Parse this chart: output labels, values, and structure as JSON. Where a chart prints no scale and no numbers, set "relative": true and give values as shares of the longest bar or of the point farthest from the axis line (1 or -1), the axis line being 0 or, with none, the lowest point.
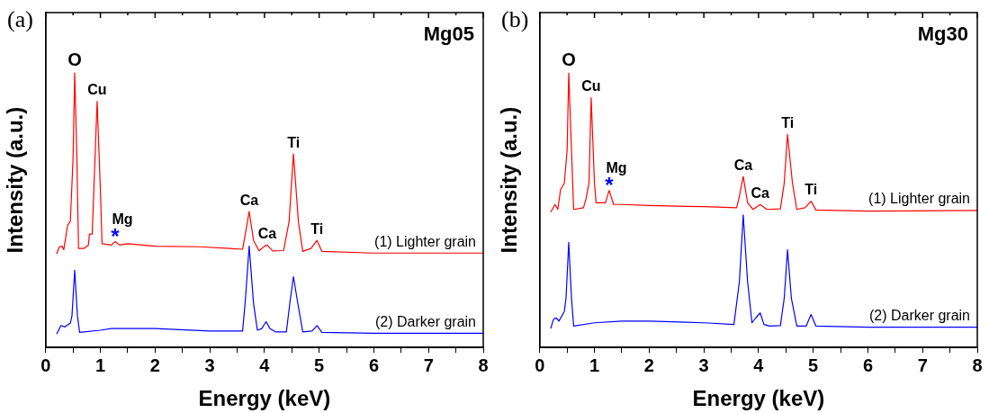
{
  "chart_data": [
    {
      "type": "line",
      "title": "Mg05",
      "xlabel": "Energy (keV)",
      "ylabel": "Intensity (a.u.)",
      "relative": true,
      "legend": false,
      "grid": false,
      "xlim": [
        0,
        8
      ],
      "xticks": [
        0,
        {
          "value": 0.5,
          "label": null
        },
        1,
        {
          "value": 1.5,
          "label": null
        },
        2,
        {
          "value": 2.5,
          "label": null
        },
        3,
        {
          "value": 3.5,
          "label": null
        },
        4,
        {
          "value": 4.5,
          "label": null
        },
        5,
        {
          "value": 5.5,
          "label": null
        },
        6,
        {
          "value": 6.5,
          "label": null
        },
        7,
        {
          "value": 7.5,
          "label": null
        },
        8
      ],
      "series": [
        {
          "name": "(1) Lighter grain",
          "color": "#ff0000",
          "x": [
            0.2,
            0.25,
            0.3,
            0.33,
            0.4,
            0.45,
            0.5,
            0.53,
            0.57,
            0.6,
            0.7,
            0.78,
            0.8,
            0.85,
            0.88,
            0.94,
            1.0,
            1.03,
            1.2,
            1.27,
            1.35,
            1.5,
            2.0,
            2.8,
            3.6,
            3.65,
            3.72,
            3.8,
            3.9,
            4.0,
            4.05,
            4.15,
            4.35,
            4.45,
            4.53,
            4.62,
            4.7,
            4.85,
            4.96,
            5.05,
            6,
            8
          ],
          "values": [
            0.341,
            0.367,
            0.369,
            0.356,
            0.445,
            0.459,
            0.688,
            1,
            0.688,
            0.361,
            0.361,
            0.373,
            0.413,
            0.413,
            0.573,
            0.897,
            0.573,
            0.378,
            0.373,
            0.386,
            0.373,
            0.378,
            0.369,
            0.367,
            0.358,
            0.413,
            0.495,
            0.39,
            0.352,
            0.369,
            0.373,
            0.352,
            0.353,
            0.459,
            0.705,
            0.459,
            0.35,
            0.361,
            0.39,
            0.35,
            0.344,
            0.344
          ]
        },
        {
          "name": "(2) Darker grain",
          "color": "#0000ff",
          "x": [
            0.2,
            0.28,
            0.35,
            0.45,
            0.48,
            0.53,
            0.58,
            0.62,
            1.0,
            1.2,
            2.0,
            3.0,
            3.6,
            3.65,
            3.72,
            3.8,
            3.87,
            3.95,
            4.03,
            4.1,
            4.2,
            4.4,
            4.47,
            4.53,
            4.6,
            4.7,
            4.87,
            4.96,
            5.05,
            6,
            8
          ],
          "values": [
            0.049,
            0.08,
            0.075,
            0.089,
            0.115,
            0.281,
            0.115,
            0.055,
            0.063,
            0.069,
            0.069,
            0.06,
            0.06,
            0.172,
            0.369,
            0.161,
            0.063,
            0.069,
            0.094,
            0.069,
            0.057,
            0.057,
            0.172,
            0.258,
            0.172,
            0.057,
            0.06,
            0.08,
            0.055,
            0.052,
            0.052
          ]
        }
      ],
      "annotations": [
        "(a)",
        {
          "text": "O",
          "x": 0.53,
          "y": 1
        },
        {
          "text": "Cu",
          "x": 0.94,
          "y": 0.897
        },
        {
          "text": "*",
          "x": 1.27,
          "y": 0.386
        },
        {
          "text": "Mg",
          "x": 1.27,
          "y": 0.386
        },
        {
          "text": "Ca",
          "x": 3.72,
          "y": 0.495
        },
        {
          "text": "Ca",
          "x": 4.05,
          "y": 0.373
        },
        {
          "text": "Ti",
          "x": 4.53,
          "y": 0.705
        },
        {
          "text": "Ti",
          "x": 4.96,
          "y": 0.39
        }
      ]
    },
    {
      "type": "line",
      "title": "Mg30",
      "xlabel": "Energy (keV)",
      "ylabel": "Intensity (a.u.)",
      "relative": true,
      "legend": false,
      "grid": false,
      "xlim": [
        0,
        8
      ],
      "xticks": [
        0,
        {
          "value": 0.5,
          "label": null
        },
        1,
        {
          "value": 1.5,
          "label": null
        },
        2,
        {
          "value": 2.5,
          "label": null
        },
        3,
        {
          "value": 3.5,
          "label": null
        },
        4,
        {
          "value": 4.5,
          "label": null
        },
        5,
        {
          "value": 5.5,
          "label": null
        },
        6,
        {
          "value": 6.5,
          "label": null
        },
        7,
        {
          "value": 7.5,
          "label": null
        },
        8
      ],
      "series": [
        {
          "name": "(1) Lighter grain",
          "color": "#ff0000",
          "x": [
            0.2,
            0.28,
            0.33,
            0.38,
            0.45,
            0.5,
            0.53,
            0.58,
            0.62,
            0.8,
            0.85,
            0.9,
            0.94,
            1.0,
            1.03,
            1.2,
            1.27,
            1.35,
            1.5,
            2.0,
            3.0,
            3.6,
            3.65,
            3.72,
            3.8,
            3.9,
            4.03,
            4.15,
            4.4,
            4.47,
            4.53,
            4.62,
            4.7,
            4.85,
            4.96,
            5.05,
            6,
            8
          ],
          "values": [
            0.493,
            0.521,
            0.503,
            0.575,
            0.599,
            0.719,
            1,
            0.719,
            0.503,
            0.509,
            0.545,
            0.599,
            0.91,
            0.599,
            0.527,
            0.527,
            0.572,
            0.521,
            0.521,
            0.517,
            0.513,
            0.509,
            0.551,
            0.623,
            0.527,
            0.503,
            0.521,
            0.503,
            0.505,
            0.599,
            0.776,
            0.599,
            0.503,
            0.509,
            0.533,
            0.501,
            0.497,
            0.499
          ]
        },
        {
          "name": "(2) Darker grain",
          "color": "#0000ff",
          "x": [
            0.2,
            0.25,
            0.3,
            0.35,
            0.45,
            0.48,
            0.53,
            0.58,
            0.62,
            1.0,
            1.5,
            2.0,
            3.0,
            3.55,
            3.65,
            3.72,
            3.8,
            3.88,
            3.95,
            4.03,
            4.1,
            4.2,
            4.4,
            4.47,
            4.53,
            4.6,
            4.7,
            4.87,
            4.96,
            5.05,
            6,
            8
          ],
          "values": [
            0.069,
            0.102,
            0.108,
            0.096,
            0.132,
            0.18,
            0.383,
            0.18,
            0.078,
            0.09,
            0.096,
            0.096,
            0.09,
            0.084,
            0.24,
            0.483,
            0.24,
            0.09,
            0.108,
            0.126,
            0.084,
            0.078,
            0.08,
            0.18,
            0.356,
            0.18,
            0.078,
            0.078,
            0.12,
            0.078,
            0.074,
            0.074
          ]
        }
      ],
      "annotations": [
        "(b)",
        {
          "text": "O",
          "x": 0.53,
          "y": 1
        },
        {
          "text": "Cu",
          "x": 0.94,
          "y": 0.91
        },
        {
          "text": "*",
          "x": 1.27,
          "y": 0.572
        },
        {
          "text": "Mg",
          "x": 1.27,
          "y": 0.572
        },
        {
          "text": "Ca",
          "x": 3.72,
          "y": 0.623
        },
        {
          "text": "Ca",
          "x": 4.03,
          "y": 0.521
        },
        {
          "text": "Ti",
          "x": 4.53,
          "y": 0.776
        },
        {
          "text": "Ti",
          "x": 4.96,
          "y": 0.533
        }
      ]
    }
  ]
}
